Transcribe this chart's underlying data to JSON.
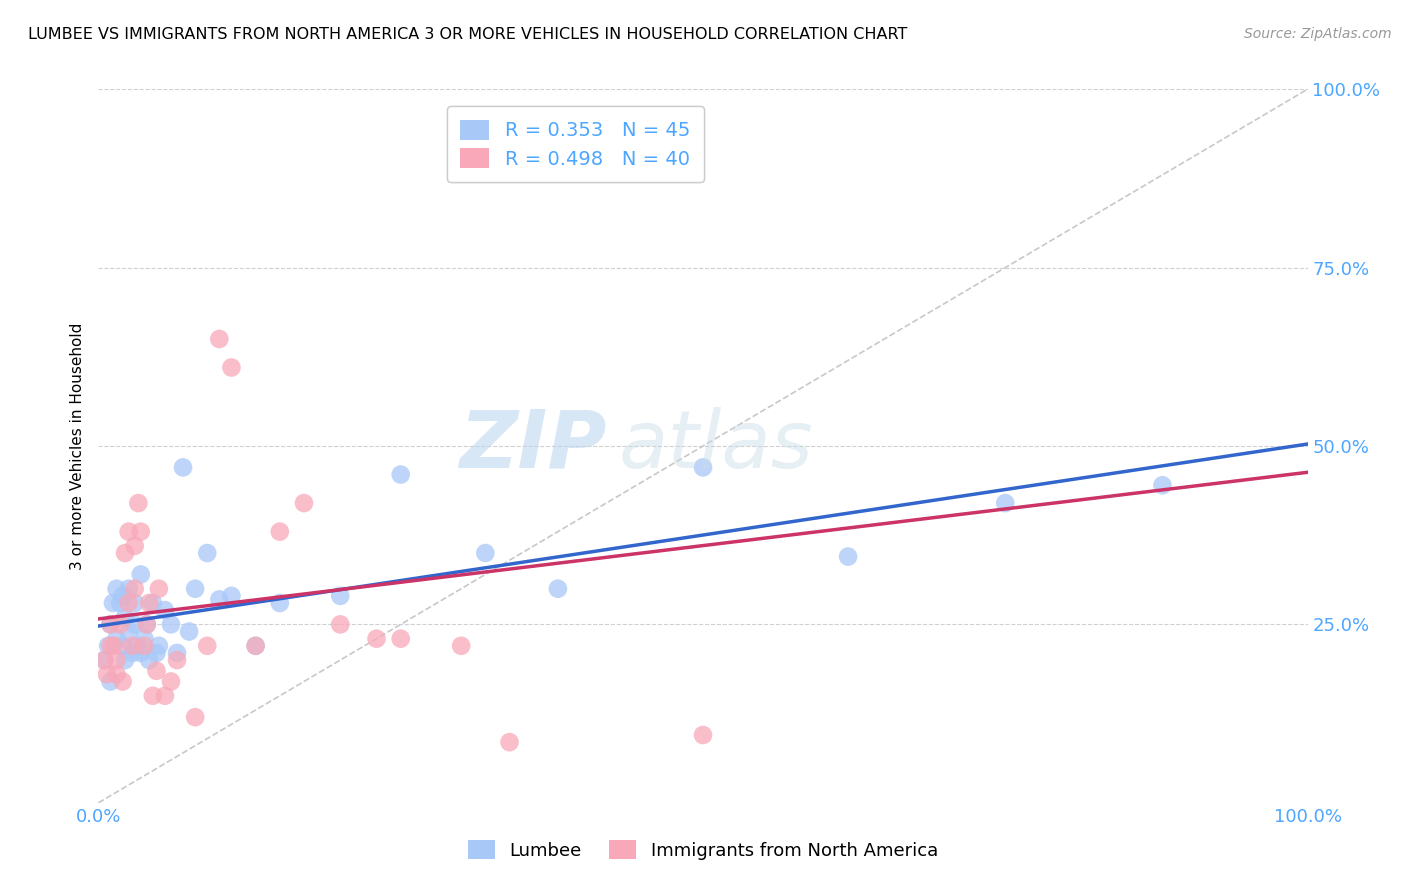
{
  "title": "LUMBEE VS IMMIGRANTS FROM NORTH AMERICA 3 OR MORE VEHICLES IN HOUSEHOLD CORRELATION CHART",
  "source": "Source: ZipAtlas.com",
  "tick_color": "#4da6ff",
  "ylabel": "3 or more Vehicles in Household",
  "xlim": [
    0,
    1.0
  ],
  "ylim": [
    0,
    1.0
  ],
  "x_ticks": [
    0.0,
    0.25,
    0.5,
    0.75,
    1.0
  ],
  "x_tick_labels": [
    "0.0%",
    "",
    "",
    "",
    "100.0%"
  ],
  "y_ticks": [
    0.0,
    0.25,
    0.5,
    0.75,
    1.0
  ],
  "y_tick_labels": [
    "",
    "25.0%",
    "50.0%",
    "75.0%",
    "100.0%"
  ],
  "lumbee_R": "0.353",
  "lumbee_N": "45",
  "immig_R": "0.498",
  "immig_N": "40",
  "lumbee_color": "#a8c8f8",
  "immig_color": "#f8a8b8",
  "lumbee_line_color": "#3366cc",
  "immig_line_color": "#cc3366",
  "diagonal_color": "#c8c8c8",
  "watermark_zip": "ZIP",
  "watermark_atlas": "atlas",
  "legend_label_lumbee": "Lumbee",
  "legend_label_immig": "Immigrants from North America",
  "lumbee_x": [
    0.005,
    0.008,
    0.01,
    0.01,
    0.012,
    0.015,
    0.015,
    0.018,
    0.02,
    0.02,
    0.022,
    0.022,
    0.025,
    0.025,
    0.028,
    0.03,
    0.03,
    0.032,
    0.035,
    0.035,
    0.038,
    0.04,
    0.042,
    0.045,
    0.048,
    0.05,
    0.055,
    0.06,
    0.065,
    0.07,
    0.075,
    0.08,
    0.09,
    0.1,
    0.11,
    0.13,
    0.15,
    0.2,
    0.25,
    0.32,
    0.38,
    0.5,
    0.62,
    0.75,
    0.88
  ],
  "lumbee_y": [
    0.2,
    0.22,
    0.17,
    0.25,
    0.28,
    0.3,
    0.23,
    0.28,
    0.29,
    0.22,
    0.26,
    0.2,
    0.3,
    0.24,
    0.21,
    0.28,
    0.25,
    0.22,
    0.32,
    0.21,
    0.23,
    0.25,
    0.2,
    0.28,
    0.21,
    0.22,
    0.27,
    0.25,
    0.21,
    0.47,
    0.24,
    0.3,
    0.35,
    0.285,
    0.29,
    0.22,
    0.28,
    0.29,
    0.46,
    0.35,
    0.3,
    0.47,
    0.345,
    0.42,
    0.445
  ],
  "immig_x": [
    0.005,
    0.007,
    0.01,
    0.01,
    0.013,
    0.015,
    0.015,
    0.018,
    0.02,
    0.022,
    0.025,
    0.025,
    0.028,
    0.03,
    0.03,
    0.033,
    0.035,
    0.038,
    0.04,
    0.042,
    0.045,
    0.048,
    0.05,
    0.055,
    0.06,
    0.065,
    0.08,
    0.09,
    0.1,
    0.11,
    0.13,
    0.15,
    0.17,
    0.2,
    0.23,
    0.25,
    0.3,
    0.34,
    0.4,
    0.5
  ],
  "immig_y": [
    0.2,
    0.18,
    0.22,
    0.25,
    0.22,
    0.2,
    0.18,
    0.25,
    0.17,
    0.35,
    0.28,
    0.38,
    0.22,
    0.3,
    0.36,
    0.42,
    0.38,
    0.22,
    0.25,
    0.28,
    0.15,
    0.185,
    0.3,
    0.15,
    0.17,
    0.2,
    0.12,
    0.22,
    0.65,
    0.61,
    0.22,
    0.38,
    0.42,
    0.25,
    0.23,
    0.23,
    0.22,
    0.085,
    0.9,
    0.095
  ]
}
